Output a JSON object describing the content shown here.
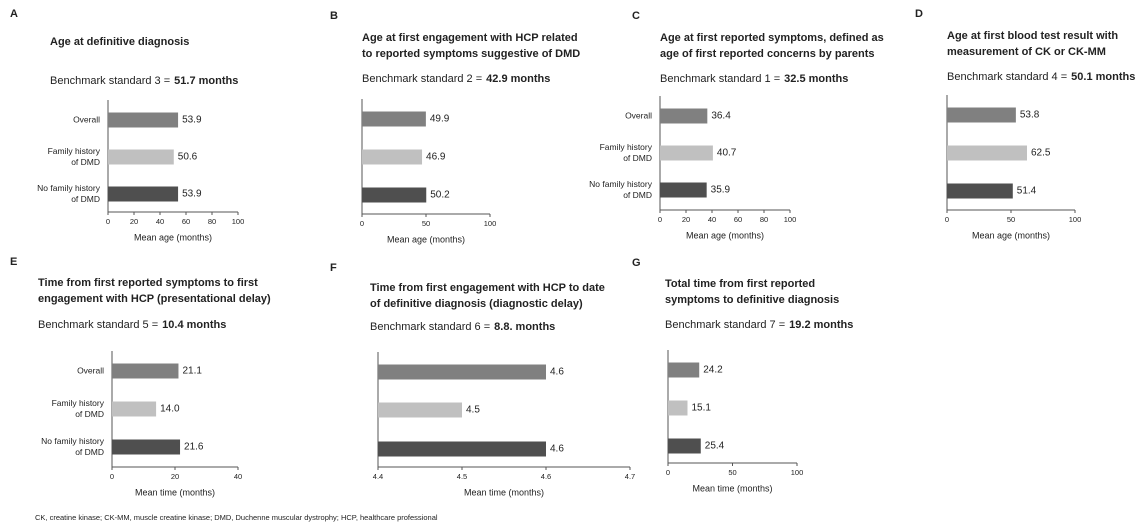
{
  "chart_data": [
    {
      "type": "barh",
      "panel": "A",
      "title": [
        "Age at definitive diagnosis"
      ],
      "benchmark": "Benchmark standard 3 =",
      "benchmark_value": "51.7 months",
      "categories": [
        [
          "Overall"
        ],
        [
          "Family history",
          "of DMD"
        ],
        [
          "No family history",
          "of DMD"
        ]
      ],
      "category_label_color": "#333333",
      "values": [
        53.9,
        50.6,
        53.9
      ],
      "colors": [
        "#808080",
        "#c0c0c0",
        "#4f4f4f"
      ],
      "xlim": [
        0,
        100
      ],
      "xticks": [
        0,
        20,
        40,
        60,
        80,
        100
      ],
      "xlabel": "Mean age (months)"
    },
    {
      "type": "barh",
      "panel": "B",
      "title": [
        "Age at first engagement with HCP related",
        "to reported symptoms suggestive of DMD"
      ],
      "benchmark": "Benchmark standard 2 =",
      "benchmark_value": "42.9 months",
      "categories": [
        null,
        null,
        null
      ],
      "category_label_color": "#333333",
      "values": [
        49.9,
        46.9,
        50.2
      ],
      "colors": [
        "#808080",
        "#c0c0c0",
        "#4f4f4f"
      ],
      "xlim": [
        0,
        100
      ],
      "xticks": [
        0,
        50,
        100
      ],
      "xlabel": "Mean age (months)"
    },
    {
      "type": "barh",
      "panel": "C",
      "title": [
        "Age at first reported symptoms, defined as",
        "age of first reported concerns by parents"
      ],
      "benchmark": "Benchmark standard 1 =",
      "benchmark_value": "32.5 months",
      "categories": [
        [
          "Overall"
        ],
        [
          "Family history",
          "of DMD"
        ],
        [
          "No family history",
          "of DMD"
        ]
      ],
      "category_label_color": "#bdbdbd",
      "values": [
        36.4,
        40.7,
        35.9
      ],
      "colors": [
        "#808080",
        "#c0c0c0",
        "#4f4f4f"
      ],
      "xlim": [
        0,
        100
      ],
      "xticks": [
        0,
        20,
        40,
        60,
        80,
        100
      ],
      "xlabel": "Mean age (months)"
    },
    {
      "type": "barh",
      "panel": "D",
      "title": [
        "Age at first blood test result with",
        "measurement of CK or CK-MM"
      ],
      "benchmark": "Benchmark standard 4 =",
      "benchmark_value": "50.1 months",
      "categories": [
        null,
        null,
        null
      ],
      "category_label_color": "#333333",
      "values": [
        53.8,
        62.5,
        51.4
      ],
      "colors": [
        "#808080",
        "#c0c0c0",
        "#4f4f4f"
      ],
      "xlim": [
        0,
        100
      ],
      "xticks": [
        0,
        50,
        100
      ],
      "xlabel": "Mean age (months)"
    },
    {
      "type": "barh",
      "panel": "E",
      "title": [
        "Time from first reported symptoms to first",
        "engagement with HCP (presentational delay)"
      ],
      "benchmark": "Benchmark standard 5 =",
      "benchmark_value": "10.4 months",
      "categories": [
        [
          "Overall"
        ],
        [
          "Family history",
          "of DMD"
        ],
        [
          "No family history",
          "of DMD"
        ]
      ],
      "category_label_color": "#333333",
      "values": [
        21.1,
        14.0,
        21.6
      ],
      "value_labels": [
        "21.1",
        "14.0",
        "21.6"
      ],
      "colors": [
        "#808080",
        "#c0c0c0",
        "#4f4f4f"
      ],
      "xlim": [
        0,
        40
      ],
      "xticks": [
        0,
        20,
        40
      ],
      "xlabel": "Mean time (months)"
    },
    {
      "type": "barh",
      "panel": "F",
      "title": [
        "Time from first engagement with HCP to date",
        "of definitive diagnosis (diagnostic delay)"
      ],
      "benchmark": "Benchmark standard 6 =",
      "benchmark_value": "8.8. months",
      "categories": [
        null,
        null,
        null
      ],
      "category_label_color": "#333333",
      "values": [
        4.6,
        4.5,
        4.6
      ],
      "colors": [
        "#808080",
        "#c0c0c0",
        "#4f4f4f"
      ],
      "xlim": [
        4.4,
        4.7
      ],
      "xticks": [
        4.4,
        4.5,
        4.6,
        4.7
      ],
      "xlabel": "Mean time (months)"
    },
    {
      "type": "barh",
      "panel": "G",
      "title": [
        "Total time from first reported",
        "symptoms to definitive diagnosis"
      ],
      "benchmark": "Benchmark standard 7 =",
      "benchmark_value": "19.2 months",
      "categories": [
        null,
        null,
        null
      ],
      "category_label_color": "#333333",
      "values": [
        24.2,
        15.1,
        25.4
      ],
      "colors": [
        "#808080",
        "#c0c0c0",
        "#4f4f4f"
      ],
      "xlim": [
        0,
        100
      ],
      "xticks": [
        0,
        50,
        100
      ],
      "xlabel": "Mean time (months)"
    }
  ],
  "footnote": "CK, creatine kinase; CK-MM, muscle creatine kinase; DMD, Duchenne muscular dystrophy; HCP, healthcare professional"
}
